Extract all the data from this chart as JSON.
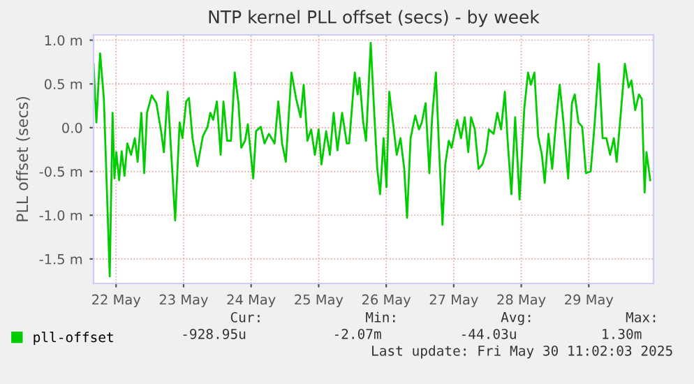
{
  "chart_data": {
    "type": "line",
    "title": "NTP kernel PLL offset (secs) - by week",
    "ylabel": "PLL offset (secs)",
    "x": [
      "2025-05-22T04:00",
      "2025-05-22T05:00",
      "2025-05-22T06:20",
      "2025-05-22T07:40",
      "2025-05-22T09:45",
      "2025-05-22T10:45",
      "2025-05-22T11:25",
      "2025-05-22T12:05",
      "2025-05-22T13:05",
      "2025-05-22T14:00",
      "2025-05-22T15:00",
      "2025-05-22T16:00",
      "2025-05-22T17:20",
      "2025-05-22T18:40",
      "2025-05-22T19:40",
      "2025-05-22T21:00",
      "2025-05-22T22:00",
      "2025-05-22T23:00",
      "2025-05-23T00:40",
      "2025-05-23T02:20",
      "2025-05-23T04:00",
      "2025-05-23T05:00",
      "2025-05-23T06:20",
      "2025-05-23T09:00",
      "2025-05-23T10:35",
      "2025-05-23T11:35",
      "2025-05-23T12:55",
      "2025-05-23T13:55",
      "2025-05-23T15:10",
      "2025-05-23T16:55",
      "2025-05-23T18:50",
      "2025-05-23T20:30",
      "2025-05-23T21:30",
      "2025-05-23T22:30",
      "2025-05-23T23:50",
      "2025-05-24T01:10",
      "2025-05-24T02:10",
      "2025-05-24T03:30",
      "2025-05-24T04:50",
      "2025-05-24T06:10",
      "2025-05-24T07:30",
      "2025-05-24T08:30",
      "2025-05-24T09:50",
      "2025-05-24T10:50",
      "2025-05-24T12:45",
      "2025-05-24T13:45",
      "2025-05-24T15:25",
      "2025-05-24T16:45",
      "2025-05-24T18:20",
      "2025-05-24T20:20",
      "2025-05-24T21:40",
      "2025-05-24T23:00",
      "2025-05-25T00:20",
      "2025-05-25T02:20",
      "2025-05-25T04:00",
      "2025-05-25T05:35",
      "2025-05-25T06:40",
      "2025-05-25T08:00",
      "2025-05-25T09:20",
      "2025-05-25T10:40",
      "2025-05-25T12:00",
      "2025-05-25T13:00",
      "2025-05-25T14:40",
      "2025-05-25T16:00",
      "2025-05-25T17:20",
      "2025-05-25T18:40",
      "2025-05-25T20:20",
      "2025-05-25T22:00",
      "2025-05-25T22:50",
      "2025-05-26T00:50",
      "2025-05-26T01:50",
      "2025-05-26T02:30",
      "2025-05-26T03:50",
      "2025-05-26T04:50",
      "2025-05-26T06:30",
      "2025-05-26T07:50",
      "2025-05-26T08:50",
      "2025-05-26T09:50",
      "2025-05-26T11:05",
      "2025-05-26T12:05",
      "2025-05-26T13:05",
      "2025-05-26T14:25",
      "2025-05-26T15:45",
      "2025-05-26T17:05",
      "2025-05-26T18:25",
      "2025-05-26T19:25",
      "2025-05-26T20:40",
      "2025-05-26T22:20",
      "2025-05-26T23:40",
      "2025-05-27T00:40",
      "2025-05-27T02:00",
      "2025-05-27T03:20",
      "2025-05-27T04:20",
      "2025-05-27T05:40",
      "2025-05-27T06:40",
      "2025-05-27T08:00",
      "2025-05-27T09:00",
      "2025-05-27T10:15",
      "2025-05-27T11:15",
      "2025-05-27T13:15",
      "2025-05-27T14:35",
      "2025-05-27T15:55",
      "2025-05-27T17:10",
      "2025-05-27T18:10",
      "2025-05-27T19:30",
      "2025-05-27T20:50",
      "2025-05-27T22:10",
      "2025-05-27T23:30",
      "2025-05-28T00:30",
      "2025-05-28T02:10",
      "2025-05-28T03:30",
      "2025-05-28T04:50",
      "2025-05-28T06:10",
      "2025-05-28T07:10",
      "2025-05-28T08:30",
      "2025-05-28T09:50",
      "2025-05-28T11:25",
      "2025-05-28T13:05",
      "2025-05-28T14:25",
      "2025-05-28T15:25",
      "2025-05-28T16:40",
      "2025-05-28T18:00",
      "2025-05-28T19:20",
      "2025-05-28T20:20",
      "2025-05-28T21:40",
      "2025-05-28T23:00",
      "2025-05-29T00:20",
      "2025-05-29T01:40",
      "2025-05-29T03:00",
      "2025-05-29T04:40",
      "2025-05-29T06:00",
      "2025-05-29T07:00",
      "2025-05-29T08:20",
      "2025-05-29T09:40",
      "2025-05-29T11:00",
      "2025-05-29T12:40",
      "2025-05-29T14:00",
      "2025-05-29T15:35",
      "2025-05-29T16:55",
      "2025-05-29T18:15",
      "2025-05-29T19:35",
      "2025-05-29T20:55",
      "2025-05-29T21:55",
      "2025-05-29T23:15",
      "2025-05-30T00:50",
      "2025-05-30T02:10",
      "2025-05-30T03:10",
      "2025-05-30T04:30",
      "2025-05-30T05:50",
      "2025-05-30T06:50",
      "2025-05-30T07:50",
      "2025-05-30T08:30",
      "2025-05-30T09:50"
    ],
    "series": [
      {
        "name": "pll-offset",
        "color": "#00cc00",
        "values": [
          0.73,
          0.06,
          0.85,
          0.33,
          -1.7,
          0.17,
          -0.58,
          -0.28,
          -0.6,
          -0.27,
          -0.55,
          -0.18,
          -0.31,
          -0.12,
          -0.39,
          0.17,
          -0.52,
          0.17,
          0.37,
          0.28,
          -0.04,
          -0.28,
          0.41,
          -1.06,
          0.06,
          -0.12,
          0.3,
          0.34,
          -0.12,
          -0.44,
          -0.1,
          0.01,
          0.17,
          0.09,
          0.3,
          -0.31,
          0.3,
          -0.15,
          -0.15,
          0.63,
          0.28,
          -0.23,
          -0.15,
          0.04,
          -0.58,
          -0.04,
          0.01,
          -0.18,
          -0.07,
          -0.18,
          0.3,
          -0.18,
          -0.39,
          0.63,
          0.33,
          0.12,
          0.49,
          -0.15,
          -0.02,
          -0.31,
          -0.02,
          -0.42,
          -0.04,
          -0.31,
          0.17,
          -0.26,
          0.17,
          -0.18,
          -0.18,
          0.63,
          0.38,
          0.57,
          0.06,
          -0.15,
          0.97,
          0.12,
          -0.47,
          -0.76,
          -0.12,
          -0.68,
          0.41,
          0.06,
          -0.31,
          -0.12,
          -0.47,
          -1.03,
          -0.12,
          0.14,
          -0.02,
          0.06,
          0.28,
          -0.52,
          0.12,
          0.63,
          -0.15,
          -1.11,
          -0.42,
          -0.15,
          -0.23,
          0.09,
          -0.12,
          0.12,
          -0.28,
          0.12,
          -0.02,
          -0.47,
          -0.42,
          -0.28,
          -0.02,
          -0.07,
          0.17,
          -0.02,
          0.41,
          -0.15,
          -0.76,
          0.12,
          -0.82,
          0.22,
          0.63,
          0.49,
          0.63,
          -0.1,
          -0.31,
          -0.63,
          -0.07,
          -0.47,
          0.06,
          0.49,
          0.06,
          -0.58,
          0.28,
          0.38,
          0.06,
          0.01,
          -0.52,
          -0.5,
          0.01,
          0.73,
          -0.12,
          -0.12,
          -0.31,
          -0.12,
          -0.39,
          0.12,
          0.73,
          0.46,
          0.54,
          0.2,
          0.38,
          0.33,
          -0.74,
          -0.28,
          -0.6
        ]
      }
    ],
    "xlim": [
      "2025-05-22T04:00",
      "2025-05-30T11:00"
    ],
    "xticks": [
      {
        "value": "2025-05-22T12:00",
        "label": "22 May"
      },
      {
        "value": "2025-05-23T12:00",
        "label": "23 May"
      },
      {
        "value": "2025-05-24T12:00",
        "label": "24 May"
      },
      {
        "value": "2025-05-25T12:00",
        "label": "25 May"
      },
      {
        "value": "2025-05-26T12:00",
        "label": "26 May"
      },
      {
        "value": "2025-05-27T12:00",
        "label": "27 May"
      },
      {
        "value": "2025-05-28T12:00",
        "label": "28 May"
      },
      {
        "value": "2025-05-29T12:00",
        "label": "29 May"
      }
    ],
    "ylim": [
      -1.78,
      1.06
    ],
    "yticks": [
      {
        "value": -1.5,
        "label": "-1.5 m"
      },
      {
        "value": -1.0,
        "label": "-1.0 m"
      },
      {
        "value": -0.5,
        "label": "-0.5 m"
      },
      {
        "value": 0,
        "label": "0.0"
      },
      {
        "value": 0.5,
        "label": "0.5 m"
      },
      {
        "value": 1.0,
        "label": "1.0 m"
      }
    ],
    "grid": true,
    "legend": "bottom left",
    "annotations": [
      "Cur:",
      "Min:",
      "Avg:",
      "Max:",
      "-928.95u",
      "-2.07m",
      "-44.03u",
      "1.30m",
      "Last update: Fri May 30 11:02:03 2025"
    ]
  }
}
